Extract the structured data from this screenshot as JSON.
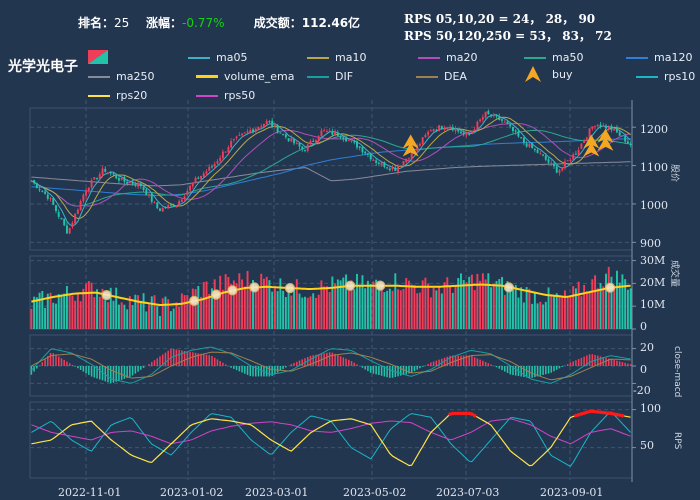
{
  "header": {
    "rank_label": "排名：",
    "rank_value": "25",
    "change_label": "涨幅：",
    "change_value": "-0.77%",
    "volume_label": "成交额：",
    "volume_value": "112.46亿",
    "rps_line1": "RPS 05,10,20 = 24， 28， 90",
    "rps_line2": "RPS 50,120,250 = 53， 83， 72"
  },
  "stock_name": "光学光电子",
  "colors": {
    "background": "#23364f",
    "up": "#ef3d5a",
    "down": "#22c3a8",
    "ma05": "#3fb0c8",
    "ma10": "#b8a84a",
    "ma20": "#b04fb8",
    "ma50": "#2aa890",
    "ma120": "#2f7fd6",
    "ma250": "#8a8a9a",
    "volume_ema": "#ffd21a",
    "dif": "#1a9fa0",
    "dea": "#a08050",
    "buy": "#f5a623",
    "rps10": "#1bb6c8",
    "rps20": "#ffe24a",
    "rps50": "#d044c8",
    "rps_high": "#ff1a1a"
  },
  "legend": [
    {
      "name": "ma05",
      "color": "#3fb0c8",
      "icon": "line"
    },
    {
      "name": "ma10",
      "color": "#b8a84a",
      "icon": "line"
    },
    {
      "name": "ma20",
      "color": "#b04fb8",
      "icon": "line"
    },
    {
      "name": "ma50",
      "color": "#2aa890",
      "icon": "line"
    },
    {
      "name": "ma120",
      "color": "#2f7fd6",
      "icon": "line"
    },
    {
      "name": "ma250",
      "color": "#8a8a9a",
      "icon": "line"
    },
    {
      "name": "volume_ema",
      "color": "#ffd21a",
      "icon": "line"
    },
    {
      "name": "DIF",
      "color": "#1a9fa0",
      "icon": "line"
    },
    {
      "name": "DEA",
      "color": "#a08050",
      "icon": "line"
    },
    {
      "name": "buy",
      "color": "#f5a623",
      "icon": "triangle-icon"
    },
    {
      "name": "rps10",
      "color": "#1bb6c8",
      "icon": "line"
    },
    {
      "name": "rps20",
      "color": "#ffe24a",
      "icon": "line"
    },
    {
      "name": "rps50",
      "color": "#d044c8",
      "icon": "line"
    }
  ],
  "chart_data": [
    {
      "type": "candlestick",
      "ylabel": "股价",
      "ylim": [
        880,
        1250
      ],
      "yticks": [
        900,
        1000,
        1100,
        1200
      ],
      "xticks": [
        "2022-11-01",
        "2023-01-02",
        "2023-03-01",
        "2023-05-02",
        "2023-07-03",
        "2023-09-01"
      ],
      "close_keypoints": [
        1060,
        1015,
        925,
        1040,
        1090,
        1060,
        1050,
        985,
        1000,
        1060,
        1100,
        1160,
        1190,
        1215,
        1175,
        1140,
        1190,
        1180,
        1150,
        1110,
        1090,
        1135,
        1195,
        1205,
        1175,
        1235,
        1215,
        1165,
        1130,
        1085,
        1135,
        1210,
        1195,
        1155
      ],
      "ma120_keypoints": [
        1045,
        1040,
        1035,
        1030,
        1025,
        1022,
        1025,
        1035,
        1050,
        1065,
        1080,
        1100,
        1115,
        1125,
        1135,
        1140,
        1145,
        1150,
        1155,
        1158,
        1160,
        1162,
        1165,
        1168,
        1170
      ],
      "ma250_keypoints": [
        1070,
        1065,
        1060,
        1055,
        1050,
        1047,
        1050,
        1060,
        1070,
        1080,
        1088,
        1095,
        1060,
        1065,
        1075,
        1085,
        1090,
        1095,
        1098,
        1100,
        1102,
        1104,
        1106,
        1108,
        1110
      ],
      "buy_signals": [
        {
          "date": "2023-05-18",
          "price": 1160
        },
        {
          "date": "2023-08-28",
          "price": 1160
        },
        {
          "date": "2023-09-05",
          "price": 1175
        }
      ]
    },
    {
      "type": "bar",
      "ylabel": "成交量",
      "ylim": [
        0,
        32000000
      ],
      "yticks": [
        "0",
        "10M",
        "20M",
        "30M"
      ],
      "volume_keypoints": [
        11,
        14,
        16,
        18,
        14,
        12,
        10,
        12,
        18,
        20,
        22,
        21,
        18,
        17,
        19,
        20,
        19,
        21,
        19,
        18,
        20,
        22,
        19,
        16,
        14,
        13,
        19,
        24,
        20
      ],
      "ema_keypoints": [
        12,
        14,
        15.5,
        16,
        14,
        12,
        10.5,
        11,
        13,
        16,
        18,
        18.5,
        18,
        17.5,
        18,
        19,
        19,
        19,
        18.5,
        18.5,
        19,
        19.5,
        19,
        17,
        15,
        14,
        16,
        18,
        19
      ]
    },
    {
      "type": "bar",
      "ylabel": "close-macd",
      "ylim": [
        -35,
        35
      ],
      "yticks": [
        20,
        0,
        -20
      ],
      "dif_keypoints": [
        -5,
        20,
        15,
        2,
        -15,
        -20,
        -10,
        10,
        18,
        22,
        14,
        0,
        -10,
        -5,
        8,
        20,
        18,
        6,
        -5,
        -12,
        -4,
        10,
        18,
        14,
        0,
        -15,
        -20,
        -10,
        5,
        12,
        8
      ],
      "dea_keypoints": [
        0,
        12,
        14,
        8,
        -5,
        -14,
        -12,
        0,
        10,
        16,
        15,
        6,
        -4,
        -6,
        2,
        12,
        15,
        10,
        2,
        -8,
        -6,
        4,
        12,
        13,
        5,
        -8,
        -16,
        -12,
        -2,
        8,
        7
      ],
      "macd_keypoints": [
        -10,
        16,
        2,
        -12,
        -20,
        -12,
        4,
        20,
        16,
        12,
        -2,
        -12,
        -12,
        2,
        12,
        16,
        6,
        -8,
        -14,
        -8,
        4,
        12,
        12,
        2,
        -10,
        -14,
        -8,
        4,
        14,
        8,
        2
      ]
    },
    {
      "type": "line",
      "ylabel": "RPS",
      "ylim": [
        10,
        110
      ],
      "yticks": [
        50,
        100
      ],
      "rps10_keypoints": [
        70,
        85,
        60,
        45,
        80,
        90,
        55,
        40,
        70,
        95,
        90,
        60,
        40,
        70,
        92,
        85,
        50,
        35,
        75,
        95,
        90,
        55,
        30,
        60,
        90,
        85,
        40,
        25,
        70,
        98,
        70
      ],
      "rps20_keypoints": [
        55,
        60,
        80,
        85,
        60,
        40,
        30,
        55,
        80,
        88,
        85,
        80,
        60,
        45,
        70,
        85,
        88,
        80,
        40,
        25,
        70,
        95,
        95,
        80,
        45,
        25,
        50,
        90,
        98,
        95,
        90
      ],
      "rps50_keypoints": [
        80,
        70,
        65,
        60,
        70,
        72,
        65,
        55,
        60,
        72,
        78,
        82,
        84,
        80,
        72,
        70,
        75,
        82,
        85,
        83,
        70,
        60,
        70,
        85,
        88,
        80,
        65,
        55,
        70,
        75,
        65
      ]
    }
  ]
}
